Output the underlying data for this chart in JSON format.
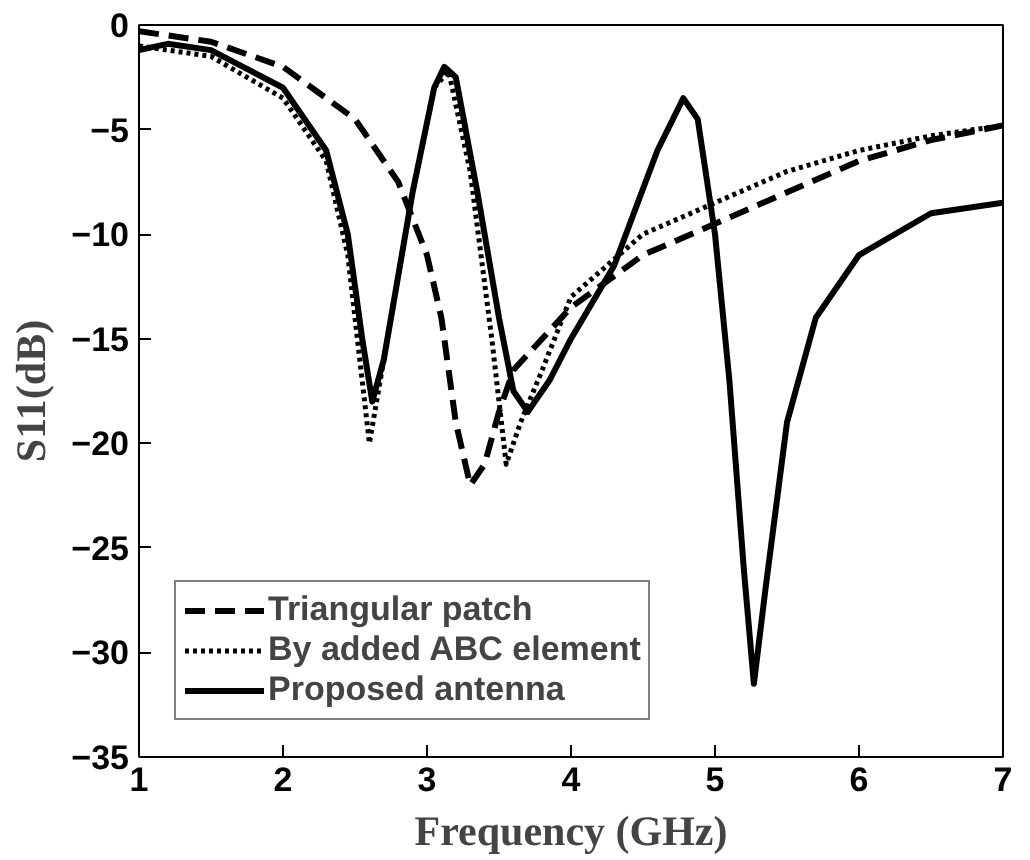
{
  "chart_data": {
    "type": "line",
    "xlabel": "Frequency (GHz)",
    "ylabel": "S11(dB)",
    "xlim": [
      1,
      7
    ],
    "ylim": [
      -35,
      0
    ],
    "xticks": [
      1,
      2,
      3,
      4,
      5,
      6,
      7
    ],
    "yticks": [
      -35,
      -30,
      -25,
      -20,
      -15,
      -10,
      -5,
      0
    ],
    "grid": false,
    "legend": "bottom left",
    "marker": "none",
    "series": [
      {
        "name": "Triangular patch",
        "color": "#000000",
        "line_style": "dashed",
        "x": [
          1,
          1.5,
          2,
          2.5,
          2.8,
          3.0,
          3.1,
          3.2,
          3.3,
          3.4,
          3.5,
          3.6,
          3.8,
          4.0,
          4.5,
          5,
          5.5,
          6,
          6.5,
          7
        ],
        "values": [
          -0.3,
          -0.8,
          -2,
          -4.5,
          -7.5,
          -11,
          -14,
          -19,
          -22,
          -21,
          -18.5,
          -16.5,
          -15,
          -13.5,
          -11,
          -9.5,
          -8,
          -6.5,
          -5.5,
          -4.8
        ]
      },
      {
        "name": "By added ABC element",
        "color": "#000000",
        "line_style": "dotted",
        "x": [
          1,
          1.5,
          2,
          2.3,
          2.45,
          2.55,
          2.6,
          2.7,
          2.9,
          3.05,
          3.15,
          3.3,
          3.45,
          3.55,
          3.65,
          3.8,
          4.0,
          4.5,
          5,
          5.5,
          6,
          6.5,
          7
        ],
        "values": [
          -1,
          -1.5,
          -3.5,
          -6.5,
          -11,
          -17,
          -20,
          -16,
          -8,
          -3,
          -2.2,
          -7,
          -15,
          -21,
          -19,
          -16.5,
          -13,
          -10,
          -8.5,
          -7,
          -6,
          -5.3,
          -4.8
        ]
      },
      {
        "name": "Proposed antenna",
        "color": "#000000",
        "line_style": "solid",
        "x": [
          1,
          1.2,
          1.5,
          2,
          2.3,
          2.45,
          2.55,
          2.62,
          2.7,
          2.9,
          3.05,
          3.12,
          3.2,
          3.35,
          3.5,
          3.6,
          3.7,
          3.85,
          4.0,
          4.3,
          4.6,
          4.78,
          4.88,
          5.0,
          5.1,
          5.2,
          5.27,
          5.35,
          5.5,
          5.7,
          6,
          6.5,
          7
        ],
        "values": [
          -1.2,
          -0.9,
          -1.2,
          -3,
          -6,
          -10,
          -15,
          -18,
          -16,
          -8,
          -3,
          -2,
          -2.5,
          -8,
          -14,
          -17.5,
          -18.5,
          -17,
          -15,
          -11.5,
          -6,
          -3.5,
          -4.5,
          -10,
          -17,
          -26,
          -31.5,
          -27,
          -19,
          -14,
          -11,
          -9,
          -8.5
        ]
      }
    ]
  }
}
